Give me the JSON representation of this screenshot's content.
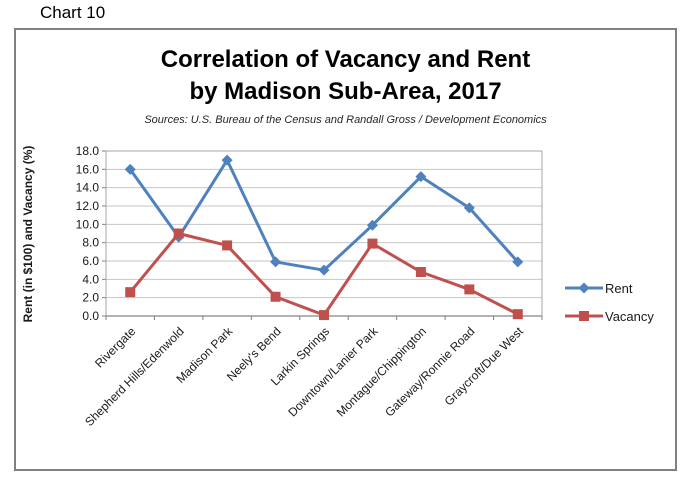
{
  "chart_label": "Chart 10",
  "chart_data": {
    "type": "line",
    "title_lines": [
      "Correlation of Vacancy and Rent",
      "by Madison Sub-Area, 2017"
    ],
    "title": "Correlation of Vacancy and Rent by Madison Sub-Area, 2017",
    "subtitle": "Sources: U.S. Bureau of the Census and Randall Gross / Development Economics",
    "ylabel": "Rent (in $100) and Vacancy (%)",
    "xlabel": "",
    "ylim": [
      0,
      18
    ],
    "ytick_step": 2,
    "yticks": [
      "0.0",
      "2.0",
      "4.0",
      "6.0",
      "8.0",
      "10.0",
      "12.0",
      "14.0",
      "16.0",
      "18.0"
    ],
    "grid": "horizontal",
    "legend_position": "right",
    "categories": [
      "Rivergate",
      "Shepherd Hills/Edenwold",
      "Madison Park",
      "Neely's Bend",
      "Larkin Springs",
      "Downtown/Lanier Park",
      "Montague/Chippington",
      "Gateway/Ronnie Road",
      "Graycroft/Due West"
    ],
    "series": [
      {
        "name": "Rent",
        "marker": "diamond",
        "color": "#4F81BD",
        "values": [
          16.0,
          8.6,
          17.0,
          5.9,
          5.0,
          9.9,
          15.2,
          11.8,
          5.9
        ]
      },
      {
        "name": "Vacancy",
        "marker": "square",
        "color": "#C0504D",
        "values": [
          2.6,
          9.0,
          7.7,
          2.1,
          0.1,
          7.9,
          4.8,
          2.9,
          0.2
        ]
      }
    ]
  }
}
